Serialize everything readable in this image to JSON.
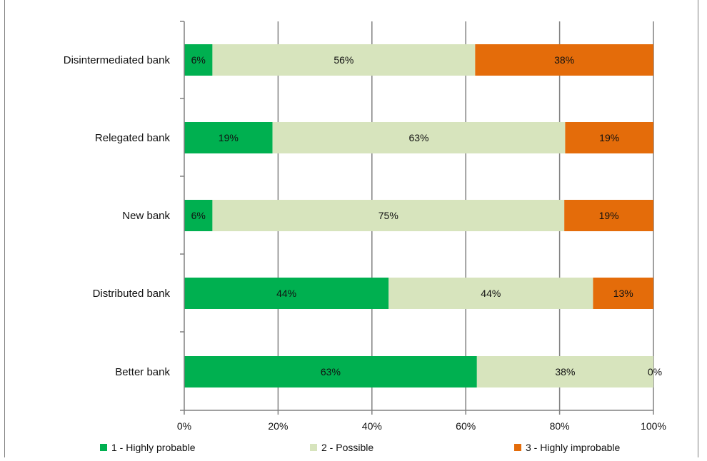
{
  "chart_data": {
    "type": "bar",
    "orientation": "horizontal",
    "stacked": true,
    "percent_stacked": true,
    "categories": [
      "Disintermediated bank",
      "Relegated bank",
      "New bank",
      "Distributed bank",
      "Better bank"
    ],
    "series": [
      {
        "name": "1 - Highly probable",
        "color": "#00b050",
        "values": [
          6,
          19,
          6,
          44,
          63
        ],
        "labels": [
          "6%",
          "19%",
          "6%",
          "44%",
          "63%"
        ]
      },
      {
        "name": "2 - Possible",
        "color": "#d7e4bd",
        "values": [
          56,
          63,
          75,
          44,
          38
        ],
        "labels": [
          "56%",
          "63%",
          "75%",
          "44%",
          "38%"
        ]
      },
      {
        "name": "3 - Highly improbable",
        "color": "#e46c0a",
        "values": [
          38,
          19,
          19,
          13,
          0
        ],
        "labels": [
          "38%",
          "19%",
          "19%",
          "13%",
          "0%"
        ]
      }
    ],
    "xlim": [
      0,
      100
    ],
    "x_ticks": [
      "0%",
      "20%",
      "40%",
      "60%",
      "80%",
      "100%"
    ],
    "grid": "vertical",
    "legend_position": "bottom"
  }
}
